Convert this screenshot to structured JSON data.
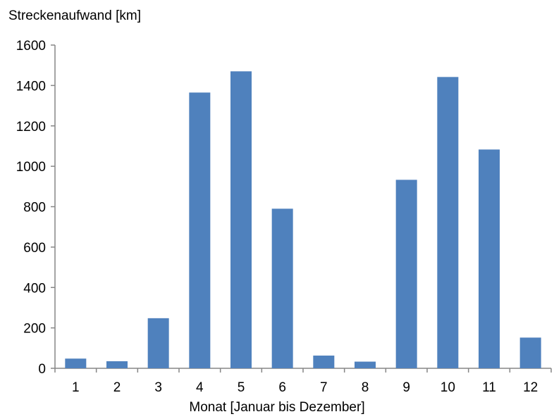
{
  "chart_data": {
    "type": "bar",
    "title": "",
    "ylabel": "Streckenaufwand [km]",
    "xlabel": "Monat [Januar bis Dezember]",
    "categories": [
      "1",
      "2",
      "3",
      "4",
      "5",
      "6",
      "7",
      "8",
      "9",
      "10",
      "11",
      "12"
    ],
    "values": [
      48,
      35,
      248,
      1365,
      1470,
      790,
      63,
      33,
      933,
      1442,
      1083,
      152
    ],
    "ylim": [
      0,
      1600
    ],
    "yticks": [
      0,
      200,
      400,
      600,
      800,
      1000,
      1200,
      1400,
      1600
    ],
    "grid": false,
    "legend": "none",
    "bar_color": "#4F81BD"
  }
}
